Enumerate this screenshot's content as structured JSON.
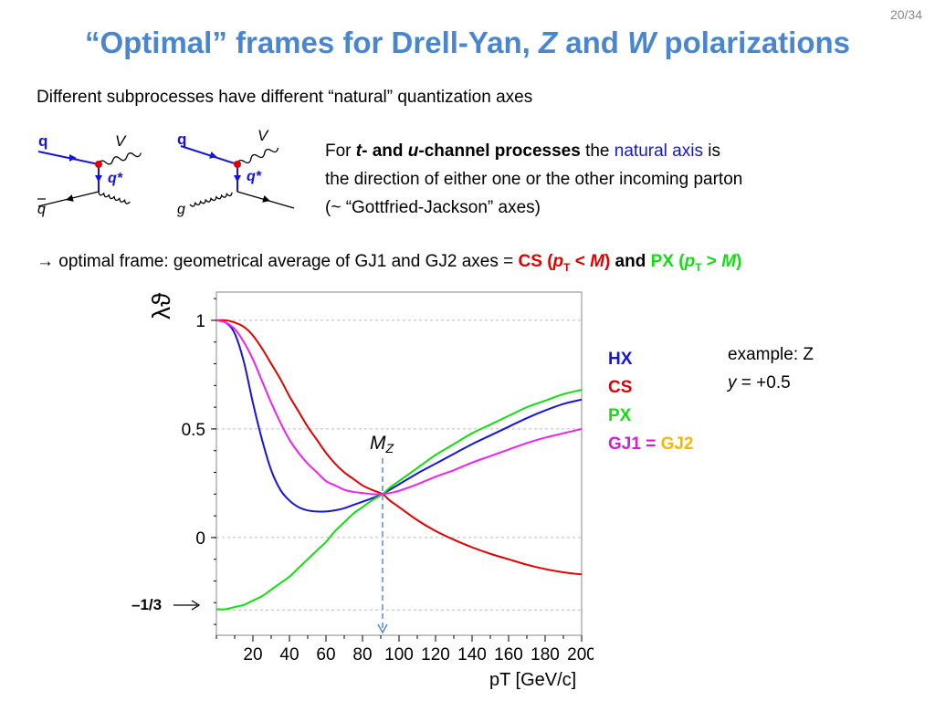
{
  "page_number": "20/34",
  "title": {
    "part1": "“Optimal” frames for Drell-Yan, ",
    "z": "Z",
    "part2": " and ",
    "w": "W",
    "part3": " polarizations"
  },
  "intro_text": "Different subprocesses have different “natural” quantization axes",
  "diagrams": {
    "d1": {
      "in1": "q",
      "in2": "q",
      "out": "V",
      "prop": "q*"
    },
    "d2": {
      "in1": "q",
      "in2": "g",
      "out": "V",
      "prop": "q*"
    }
  },
  "explanation": {
    "for": "For ",
    "t": "t",
    "and": "- and ",
    "u": "u",
    "channel": "-channel processes",
    "the": " the ",
    "natural_axis": "natural axis",
    "is": " is",
    "line2": "the direction of either one or the other incoming parton",
    "line3": "(~ “Gottfried-Jackson” axes)"
  },
  "frame_line": {
    "arrow": "→",
    "text": " optimal frame: geometrical average of GJ1 and GJ2 axes = ",
    "cs": "CS (",
    "p": "p",
    "t_sub": "T",
    "lt": " < ",
    "m": "M",
    "close": ")",
    "and": " and ",
    "px": "PX (",
    "gt": " > "
  },
  "legend": {
    "hx": "HX",
    "cs": "CS",
    "px": "PX",
    "gj1": "GJ1 = ",
    "gj2": "GJ2"
  },
  "example": {
    "line1": "example: Z",
    "y": "y",
    "rest": " = +0.5"
  },
  "third_label": "–1/3",
  "mz_label": {
    "m": "M",
    "sub": "Z"
  },
  "colors": {
    "title": "#4a86cf",
    "hx": "#1616d8",
    "cs": "#e00000",
    "px": "#11dd11",
    "gj": "#ee22ee",
    "gj2_text": "#f5b800",
    "mz_line": "#4a86cf"
  },
  "chart_data": {
    "type": "line",
    "ylabel": "λϑ",
    "xlabel": "pT [GeV/c]",
    "xlim": [
      0,
      200
    ],
    "ylim": [
      -0.45,
      1.13
    ],
    "x_ticks": [
      20,
      40,
      60,
      80,
      100,
      120,
      140,
      160,
      180,
      200
    ],
    "y_ticks": [
      {
        "value": 1,
        "label": "1"
      },
      {
        "value": 0.5,
        "label": "0.5"
      },
      {
        "value": 0,
        "label": "0"
      }
    ],
    "grid_y": [
      1,
      0.5,
      0,
      -0.3333
    ],
    "mz": 91,
    "x": [
      0,
      5,
      10,
      15,
      20,
      25,
      30,
      35,
      40,
      45,
      50,
      55,
      60,
      65,
      70,
      75,
      80,
      85,
      91,
      95,
      100,
      110,
      120,
      130,
      140,
      150,
      160,
      170,
      180,
      190,
      200
    ],
    "series": [
      {
        "name": "HX",
        "values": [
          1.0,
          0.99,
          0.94,
          0.81,
          0.62,
          0.45,
          0.31,
          0.22,
          0.17,
          0.14,
          0.125,
          0.12,
          0.12,
          0.125,
          0.135,
          0.15,
          0.165,
          0.18,
          0.2,
          0.22,
          0.245,
          0.295,
          0.34,
          0.385,
          0.43,
          0.47,
          0.51,
          0.55,
          0.585,
          0.615,
          0.635
        ]
      },
      {
        "name": "CS",
        "values": [
          1.0,
          1.0,
          0.99,
          0.97,
          0.93,
          0.87,
          0.8,
          0.73,
          0.65,
          0.58,
          0.51,
          0.45,
          0.39,
          0.34,
          0.3,
          0.27,
          0.24,
          0.22,
          0.2,
          0.17,
          0.14,
          0.08,
          0.03,
          -0.01,
          -0.045,
          -0.075,
          -0.1,
          -0.125,
          -0.145,
          -0.16,
          -0.17
        ]
      },
      {
        "name": "PX",
        "values": [
          -0.33,
          -0.33,
          -0.32,
          -0.31,
          -0.29,
          -0.27,
          -0.24,
          -0.21,
          -0.18,
          -0.14,
          -0.1,
          -0.06,
          -0.02,
          0.03,
          0.07,
          0.11,
          0.14,
          0.17,
          0.2,
          0.23,
          0.26,
          0.32,
          0.38,
          0.43,
          0.48,
          0.52,
          0.56,
          0.6,
          0.63,
          0.66,
          0.68
        ]
      },
      {
        "name": "GJ1 = GJ2",
        "values": [
          1.0,
          0.99,
          0.96,
          0.9,
          0.82,
          0.72,
          0.62,
          0.53,
          0.45,
          0.39,
          0.34,
          0.3,
          0.26,
          0.24,
          0.22,
          0.21,
          0.205,
          0.2,
          0.2,
          0.205,
          0.215,
          0.245,
          0.28,
          0.31,
          0.345,
          0.375,
          0.405,
          0.435,
          0.46,
          0.48,
          0.5
        ]
      }
    ]
  }
}
